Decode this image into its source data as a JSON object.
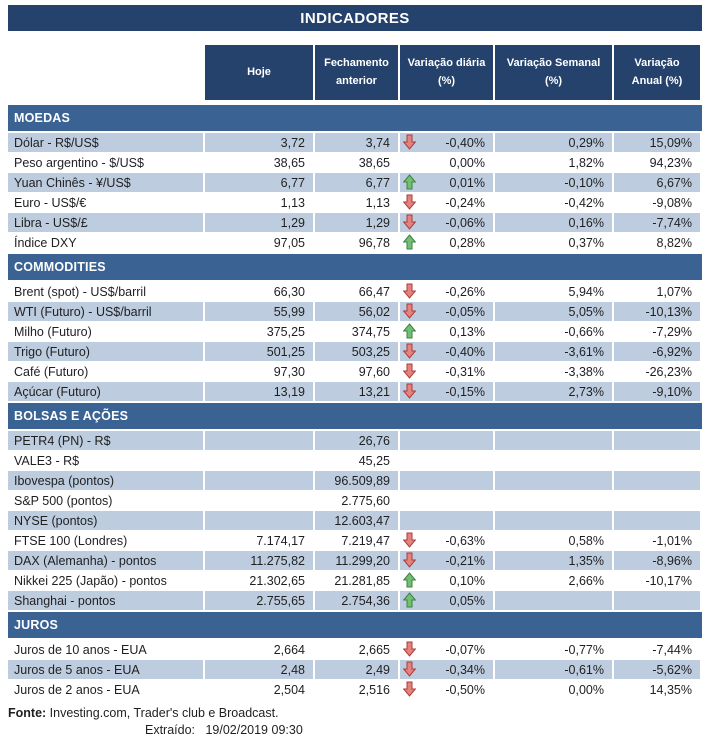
{
  "chart_data": {
    "type": "table",
    "title": "INDICADORES",
    "columns": [
      "Hoje",
      "Fechamento\nanterior",
      "Variação diária\n(%)",
      "Variação Semanal\n(%)",
      "Variação\nAnual (%)"
    ],
    "sections": [
      {
        "name": "MOEDAS",
        "rows": [
          {
            "label": "Dólar - R$/US$",
            "hoje": "3,72",
            "fechamento": "3,74",
            "arrow": "down",
            "diaria": "-0,40%",
            "semanal": "0,29%",
            "anual": "15,09%",
            "shaded": true
          },
          {
            "label": "Peso argentino - $/US$",
            "hoje": "38,65",
            "fechamento": "38,65",
            "arrow": "",
            "diaria": "0,00%",
            "semanal": "1,82%",
            "anual": "94,23%",
            "shaded": false
          },
          {
            "label": "Yuan Chinês - ¥/US$",
            "hoje": "6,77",
            "fechamento": "6,77",
            "arrow": "up",
            "diaria": "0,01%",
            "semanal": "-0,10%",
            "anual": "6,67%",
            "shaded": true
          },
          {
            "label": "Euro - US$/€",
            "hoje": "1,13",
            "fechamento": "1,13",
            "arrow": "down",
            "diaria": "-0,24%",
            "semanal": "-0,42%",
            "anual": "-9,08%",
            "shaded": false
          },
          {
            "label": "Libra - US$/£",
            "hoje": "1,29",
            "fechamento": "1,29",
            "arrow": "down",
            "diaria": "-0,06%",
            "semanal": "0,16%",
            "anual": "-7,74%",
            "shaded": true
          },
          {
            "label": "Índice DXY",
            "hoje": "97,05",
            "fechamento": "96,78",
            "arrow": "up",
            "diaria": "0,28%",
            "semanal": "0,37%",
            "anual": "8,82%",
            "shaded": false
          }
        ]
      },
      {
        "name": "COMMODITIES",
        "rows": [
          {
            "label": "Brent (spot) - US$/barril",
            "hoje": "66,30",
            "fechamento": "66,47",
            "arrow": "down",
            "diaria": "-0,26%",
            "semanal": "5,94%",
            "anual": "1,07%",
            "shaded": false
          },
          {
            "label": "WTI (Futuro) - US$/barril",
            "hoje": "55,99",
            "fechamento": "56,02",
            "arrow": "down",
            "diaria": "-0,05%",
            "semanal": "5,05%",
            "anual": "-10,13%",
            "shaded": true
          },
          {
            "label": "Milho (Futuro)",
            "hoje": "375,25",
            "fechamento": "374,75",
            "arrow": "up",
            "diaria": "0,13%",
            "semanal": "-0,66%",
            "anual": "-7,29%",
            "shaded": false
          },
          {
            "label": "Trigo (Futuro)",
            "hoje": "501,25",
            "fechamento": "503,25",
            "arrow": "down",
            "diaria": "-0,40%",
            "semanal": "-3,61%",
            "anual": "-6,92%",
            "shaded": true
          },
          {
            "label": "Café (Futuro)",
            "hoje": "97,30",
            "fechamento": "97,60",
            "arrow": "down",
            "diaria": "-0,31%",
            "semanal": "-3,38%",
            "anual": "-26,23%",
            "shaded": false
          },
          {
            "label": "Açúcar (Futuro)",
            "hoje": "13,19",
            "fechamento": "13,21",
            "arrow": "down",
            "diaria": "-0,15%",
            "semanal": "2,73%",
            "anual": "-9,10%",
            "shaded": true
          }
        ]
      },
      {
        "name": "BOLSAS E AÇÕES",
        "rows": [
          {
            "label": "PETR4 (PN) - R$",
            "hoje": "",
            "fechamento": "26,76",
            "arrow": "",
            "diaria": "",
            "semanal": "",
            "anual": "",
            "shaded": true
          },
          {
            "label": "VALE3 - R$",
            "hoje": "",
            "fechamento": "45,25",
            "arrow": "",
            "diaria": "",
            "semanal": "",
            "anual": "",
            "shaded": false
          },
          {
            "label": "Ibovespa (pontos)",
            "hoje": "",
            "fechamento": "96.509,89",
            "arrow": "",
            "diaria": "",
            "semanal": "",
            "anual": "",
            "shaded": true
          },
          {
            "label": "S&P 500 (pontos)",
            "hoje": "",
            "fechamento": "2.775,60",
            "arrow": "",
            "diaria": "",
            "semanal": "",
            "anual": "",
            "shaded": false
          },
          {
            "label": "NYSE (pontos)",
            "hoje": "",
            "fechamento": "12.603,47",
            "arrow": "",
            "diaria": "",
            "semanal": "",
            "anual": "",
            "shaded": true
          },
          {
            "label": "FTSE 100 (Londres)",
            "hoje": "7.174,17",
            "fechamento": "7.219,47",
            "arrow": "down",
            "diaria": "-0,63%",
            "semanal": "0,58%",
            "anual": "-1,01%",
            "shaded": false
          },
          {
            "label": "DAX (Alemanha) - pontos",
            "hoje": "11.275,82",
            "fechamento": "11.299,20",
            "arrow": "down",
            "diaria": "-0,21%",
            "semanal": "1,35%",
            "anual": "-8,96%",
            "shaded": true
          },
          {
            "label": "Nikkei 225 (Japão) - pontos",
            "hoje": "21.302,65",
            "fechamento": "21.281,85",
            "arrow": "up",
            "diaria": "0,10%",
            "semanal": "2,66%",
            "anual": "-10,17%",
            "shaded": false
          },
          {
            "label": "Shanghai - pontos",
            "hoje": "2.755,65",
            "fechamento": "2.754,36",
            "arrow": "up",
            "diaria": "0,05%",
            "semanal": "",
            "anual": "",
            "shaded": true
          }
        ]
      },
      {
        "name": "JUROS",
        "rows": [
          {
            "label": "Juros de 10 anos - EUA",
            "hoje": "2,664",
            "fechamento": "2,665",
            "arrow": "down",
            "diaria": "-0,07%",
            "semanal": "-0,77%",
            "anual": "-7,44%",
            "shaded": false
          },
          {
            "label": "Juros de 5 anos - EUA",
            "hoje": "2,48",
            "fechamento": "2,49",
            "arrow": "down",
            "diaria": "-0,34%",
            "semanal": "-0,61%",
            "anual": "-5,62%",
            "shaded": true
          },
          {
            "label": "Juros de 2 anos - EUA",
            "hoje": "2,504",
            "fechamento": "2,516",
            "arrow": "down",
            "diaria": "-0,50%",
            "semanal": "0,00%",
            "anual": "14,35%",
            "shaded": false
          }
        ]
      }
    ]
  },
  "footer": {
    "fonte_label": "Fonte:",
    "fonte_text": " Investing.com, Trader's club e Broadcast.",
    "extraido_label": "Extraído:",
    "extraido_value": "19/02/2019 09:30"
  },
  "colors": {
    "navy": "#24426B",
    "section_blue": "#3A6394",
    "stripe": "#BDCDDF",
    "arrow_up_fill": "#72BE72",
    "arrow_up_stroke": "#3E8243",
    "arrow_down_fill": "#E4837D",
    "arrow_down_stroke": "#AA3C39"
  }
}
